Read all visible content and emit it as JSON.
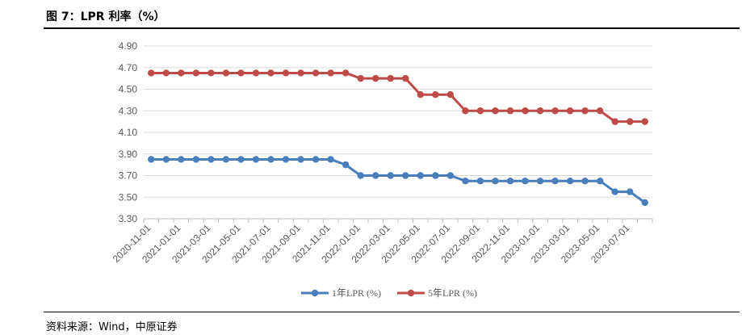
{
  "figure": {
    "title": "图 7：LPR 利率（%）",
    "source": "资料来源：Wind，中原证券"
  },
  "chart_data": {
    "type": "line",
    "title": "",
    "xlabel": "",
    "ylabel": "",
    "ylim": [
      3.3,
      4.9
    ],
    "yticks": [
      "4.90",
      "4.70",
      "4.50",
      "4.30",
      "4.10",
      "3.90",
      "3.70",
      "3.50",
      "3.30"
    ],
    "x_tick_labels": [
      "2020-11-01",
      "2021-01-01",
      "2021-03-01",
      "2021-05-01",
      "2021-07-01",
      "2021-09-01",
      "2021-11-01",
      "2022-01-01",
      "2022-03-01",
      "2022-05-01",
      "2022-07-01",
      "2022-09-01",
      "2022-11-01",
      "2023-01-01",
      "2023-03-01",
      "2023-05-01",
      "2023-07-01"
    ],
    "x": [
      "2020-11",
      "2020-12",
      "2021-01",
      "2021-02",
      "2021-03",
      "2021-04",
      "2021-05",
      "2021-06",
      "2021-07",
      "2021-08",
      "2021-09",
      "2021-10",
      "2021-11",
      "2021-12",
      "2022-01",
      "2022-02",
      "2022-03",
      "2022-04",
      "2022-05",
      "2022-06",
      "2022-07",
      "2022-08",
      "2022-09",
      "2022-10",
      "2022-11",
      "2022-12",
      "2023-01",
      "2023-02",
      "2023-03",
      "2023-04",
      "2023-05",
      "2023-06",
      "2023-07",
      "2023-08"
    ],
    "grid": true,
    "legend_position": "bottom-center",
    "series": [
      {
        "name": "1年LPR (%)",
        "color": "#4a7ebb",
        "values": [
          3.85,
          3.85,
          3.85,
          3.85,
          3.85,
          3.85,
          3.85,
          3.85,
          3.85,
          3.85,
          3.85,
          3.85,
          3.85,
          3.8,
          3.7,
          3.7,
          3.7,
          3.7,
          3.7,
          3.7,
          3.7,
          3.65,
          3.65,
          3.65,
          3.65,
          3.65,
          3.65,
          3.65,
          3.65,
          3.65,
          3.65,
          3.55,
          3.55,
          3.45
        ]
      },
      {
        "name": "5年LPR (%)",
        "color": "#be4b48",
        "values": [
          4.65,
          4.65,
          4.65,
          4.65,
          4.65,
          4.65,
          4.65,
          4.65,
          4.65,
          4.65,
          4.65,
          4.65,
          4.65,
          4.65,
          4.6,
          4.6,
          4.6,
          4.6,
          4.45,
          4.45,
          4.45,
          4.3,
          4.3,
          4.3,
          4.3,
          4.3,
          4.3,
          4.3,
          4.3,
          4.3,
          4.3,
          4.2,
          4.2,
          4.2
        ]
      }
    ]
  }
}
